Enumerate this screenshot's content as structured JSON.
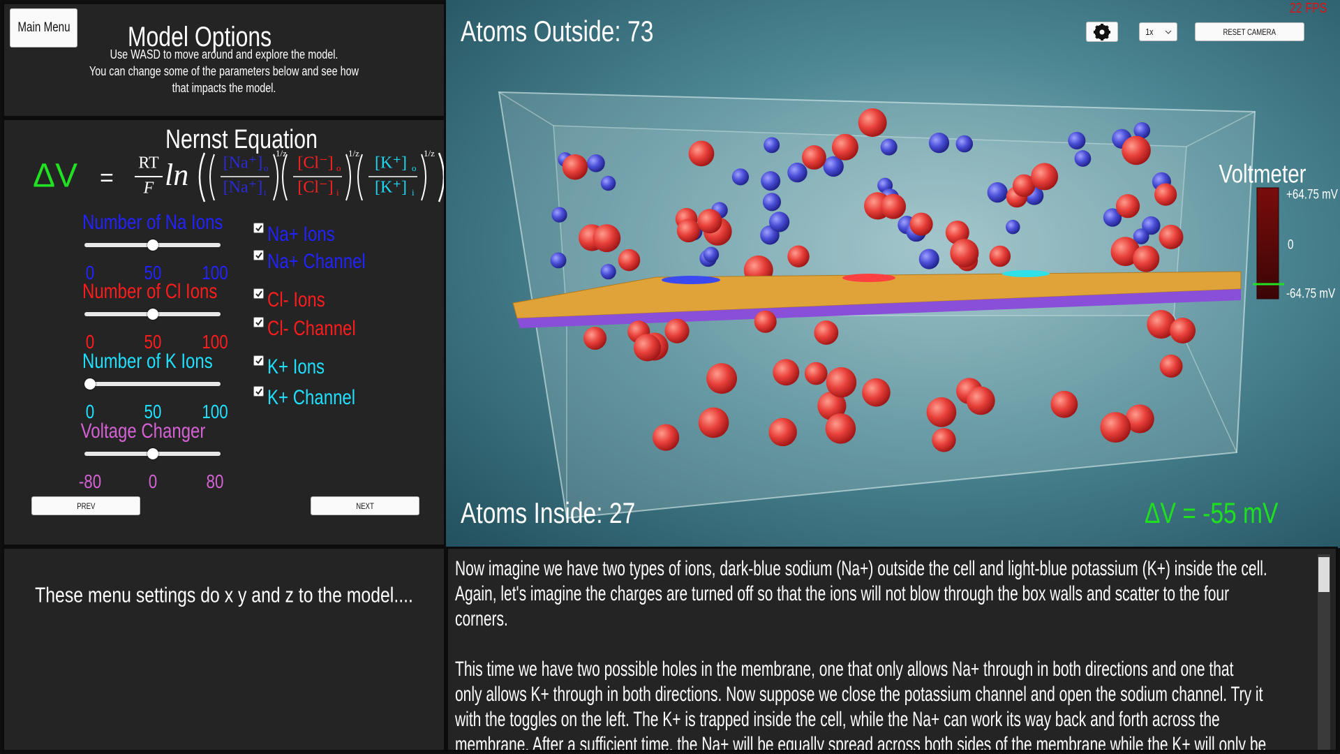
{
  "header": {
    "main_menu": "Main Menu",
    "title": "Model Options",
    "instructions": [
      "Use WASD to move around and explore the model.",
      "You can change some of the parameters below and see how",
      "that impacts the model."
    ]
  },
  "equation": {
    "title": "Nernst Equation",
    "lhs": "ΔV",
    "equals": "=",
    "numerator": "RT",
    "denominator": "F",
    "ln": "ln",
    "terms": [
      {
        "num": "[Na⁺]",
        "num_sub": "o",
        "den": "[Na⁺]",
        "den_sub": "i",
        "exponent": "1/z",
        "color": "#2a2ad6"
      },
      {
        "num": "[Cl⁻]",
        "num_sub": "o",
        "den": "[Cl⁻]",
        "den_sub": "i",
        "exponent": "1/z",
        "color": "#ff2020"
      },
      {
        "num": "[K⁺]",
        "num_sub": "o",
        "den": "[K⁺]",
        "den_sub": "i",
        "exponent": "1/z",
        "color": "#1fd8f0"
      }
    ]
  },
  "sliders": [
    {
      "label": "Number of Na Ions",
      "color": "#2222ff",
      "ticks": [
        0,
        50,
        100
      ],
      "value": 50
    },
    {
      "label": "Number of Cl Ions",
      "color": "#ff1c1c",
      "ticks": [
        0,
        50,
        100
      ],
      "value": 50
    },
    {
      "label": "Number of K Ions",
      "color": "#1fe0ff",
      "ticks": [
        0,
        50,
        100
      ],
      "value": 0
    },
    {
      "label": "Voltage Changer",
      "color": "#d462d4",
      "ticks": [
        -80,
        0,
        80
      ],
      "value": 0
    }
  ],
  "checkboxes": [
    {
      "label": "Na+ Ions",
      "checked": true,
      "color": "#2222ff"
    },
    {
      "label": "Na+ Channel",
      "checked": true,
      "color": "#2222ff"
    },
    {
      "label": "Cl- Ions",
      "checked": true,
      "color": "#ff1c1c"
    },
    {
      "label": "Cl- Channel",
      "checked": true,
      "color": "#ff1c1c"
    },
    {
      "label": "K+ Ions",
      "checked": true,
      "color": "#1fe0ff"
    },
    {
      "label": "K+ Channel",
      "checked": true,
      "color": "#1fe0ff"
    }
  ],
  "buttons": {
    "prev": "PREV",
    "next": "NEXT"
  },
  "info": "These menu settings do x y and z to the model....",
  "viewport": {
    "atoms_outside": "Atoms Outside: 73",
    "atoms_inside": "Atoms Inside: 27",
    "fps": "22 FPS",
    "speed": "1x",
    "reset_camera": "RESET CAMERA",
    "voltmeter": {
      "title": "Voltmeter",
      "max_label": "+64.75 mV",
      "zero_label": "0",
      "min_label": "-64.75 mV"
    },
    "delta_v": "ΔV = -55 mV"
  },
  "description": {
    "paragraphs": [
      [
        "Now imagine we have two types of ions, dark-blue sodium (Na+) outside the cell and light-blue potassium (K+) inside the cell.",
        "Again, let's imagine the charges are turned off so that the ions will not blow through the box walls and scatter to the four",
        "corners."
      ],
      [
        "This time we have two possible holes in the membrane, one that only allows Na+ through in both directions and one that",
        "only allows K+ through in both directions. Now suppose we close the potassium channel and open the sodium channel. Try it",
        "with the toggles on the left. The K+ is trapped inside the cell, while the Na+ can work its way back and forth across the",
        "membrane. After a sufficient time, the Na+ will be equally spread across both sides of the membrane while the K+ will only be"
      ]
    ]
  }
}
